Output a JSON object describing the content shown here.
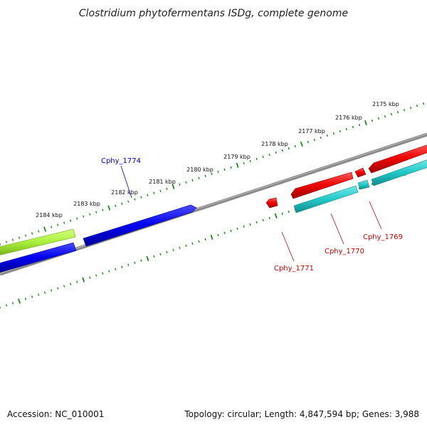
{
  "title": "Clostridium phytofermentans ISDg, complete genome",
  "footer": {
    "accession": "Accession: NC_010001",
    "summary": "Topology: circular; Length: 4,847,594 bp; Genes: 3,988"
  },
  "scale_labels": [
    "2175 kbp",
    "2176 kbp",
    "2177 kbp",
    "2178 kbp",
    "2179 kbp",
    "2180 kbp",
    "2181 kbp",
    "2182 kbp",
    "2183 kbp",
    "2184 kbp"
  ],
  "gene_labels": {
    "cphy_1774": "Cphy_1774",
    "cphy_1771": "Cphy_1771",
    "cphy_1770": "Cphy_1770",
    "cphy_1769": "Cphy_1769"
  },
  "colors": {
    "blue_genes": "#0000ee",
    "red_genes": "#ee0000",
    "cyan_genes": "#22c8c8",
    "lime_genes": "#a8ee3a",
    "backbone": "#808080",
    "ticks": "#1a8a1a",
    "blue_label": "#0000cc",
    "red_label": "#cc0000"
  }
}
